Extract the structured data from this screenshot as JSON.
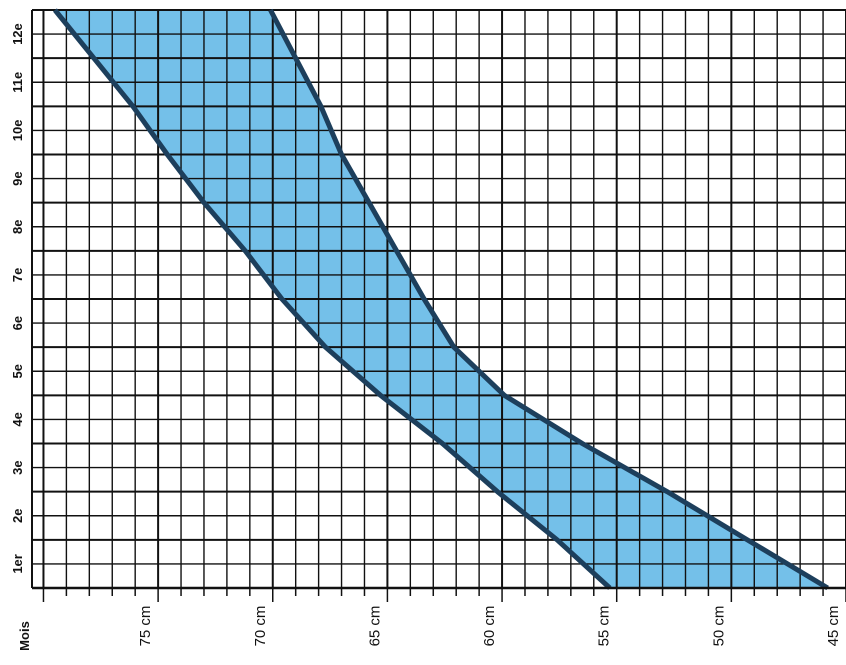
{
  "chart_data": {
    "type": "area",
    "orientation": "rotated",
    "title": "",
    "x_axis": {
      "label": "",
      "ticks": [
        "75 cm",
        "70 cm",
        "65 cm",
        "60 cm",
        "55 cm",
        "50 cm",
        "45 cm"
      ],
      "tick_values": [
        75,
        70,
        65,
        60,
        55,
        50,
        45
      ],
      "range": [
        80.5,
        45
      ],
      "reversed": true
    },
    "y_axis": {
      "label": "Mois",
      "ticks": [
        "1er",
        "2e",
        "3e",
        "4e",
        "5e",
        "6e",
        "7e",
        "8e",
        "9e",
        "10e",
        "11e",
        "12e"
      ],
      "range": [
        0,
        12
      ]
    },
    "grid": true,
    "band_color": "#3fa8e0",
    "line_color": "#1d3f5c",
    "series": [
      {
        "name": "",
        "x": [
          0,
          1,
          2,
          3,
          4,
          5,
          6,
          7,
          8,
          9,
          10,
          11,
          12
        ],
        "y": [
          55.3,
          57.6,
          60.2,
          62.6,
          65.3,
          67.7,
          69.6,
          71.2,
          73.0,
          74.6,
          76.1,
          77.8,
          79.5
        ]
      },
      {
        "name": "",
        "x": [
          0,
          1,
          2,
          3,
          4,
          5,
          6,
          7,
          8,
          9,
          10,
          11,
          12
        ],
        "y": [
          45.8,
          49.3,
          52.8,
          56.5,
          59.9,
          62.1,
          63.4,
          64.6,
          65.8,
          67.0,
          67.9,
          69.0,
          70.1
        ]
      }
    ]
  }
}
